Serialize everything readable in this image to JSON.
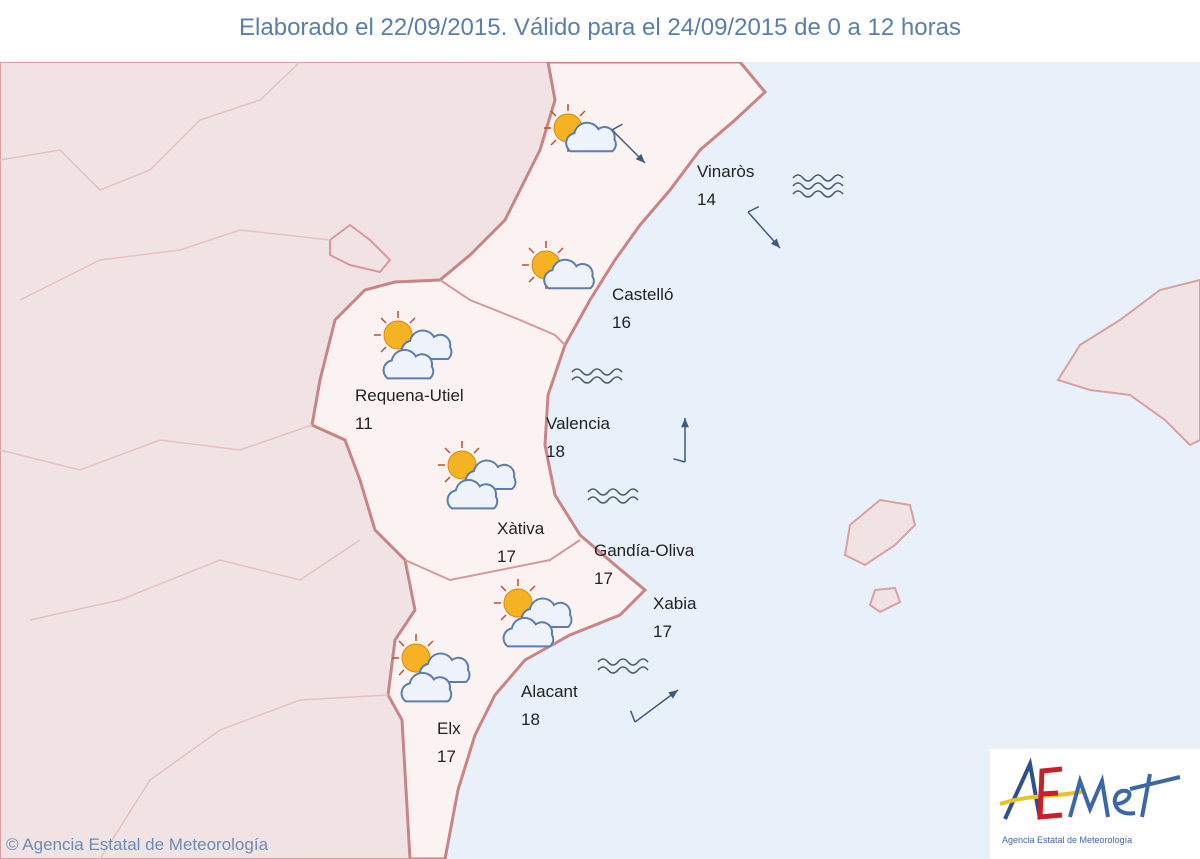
{
  "header": {
    "title": "Elaborado el 22/09/2015. Válido para el 24/09/2015 de 0 a 12 horas"
  },
  "cities": [
    {
      "name": "Vinaròs",
      "temp": "14"
    },
    {
      "name": "Castelló",
      "temp": "16"
    },
    {
      "name": "Requena-Utiel",
      "temp": "11"
    },
    {
      "name": "Valencia",
      "temp": "18"
    },
    {
      "name": "Xàtiva",
      "temp": "17"
    },
    {
      "name": "Gandía-Oliva",
      "temp": "17"
    },
    {
      "name": "Xabia",
      "temp": "17"
    },
    {
      "name": "Alacant",
      "temp": "18"
    },
    {
      "name": "Elx",
      "temp": "17"
    }
  ],
  "weather_icons": [
    "sun-behind-cloud",
    "sun-behind-cloud",
    "sun-behind-clouds",
    "sun-behind-clouds",
    "sun-behind-clouds",
    "sun-behind-clouds"
  ],
  "wind_arrows": [
    "south-east",
    "south-east",
    "north",
    "north-east"
  ],
  "sea_state": [
    "rough-sea",
    "waves",
    "waves",
    "waves"
  ],
  "colors": {
    "land": "#f3e6e6",
    "sea": "#e8f0fa",
    "borders": "#c98585",
    "title": "#5a7fa8",
    "wind": "#3e5a7e"
  },
  "footer": {
    "copyright": "© Agencia Estatal de Meteorología"
  },
  "logo": {
    "text": "AEMet",
    "subtitle": "Agencia Estatal de Meteorología"
  }
}
